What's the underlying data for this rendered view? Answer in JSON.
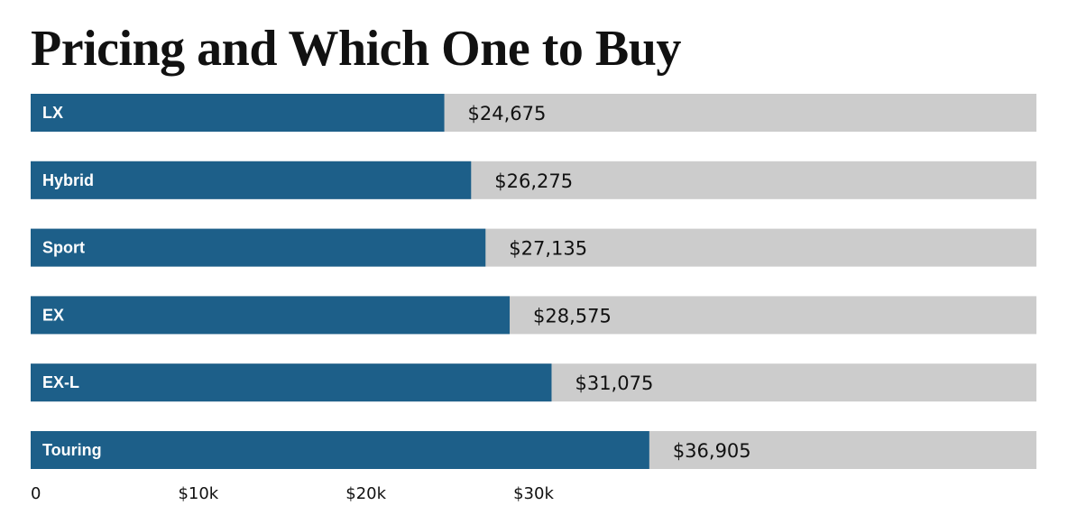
{
  "chart_data": {
    "type": "bar",
    "orientation": "horizontal",
    "title": "Pricing and Which One to Buy",
    "categories": [
      "LX",
      "Hybrid",
      "Sport",
      "EX",
      "EX-L",
      "Touring"
    ],
    "values": [
      24675,
      26275,
      27135,
      28575,
      31075,
      36905
    ],
    "value_labels": [
      "$24,675",
      "$26,275",
      "$27,135",
      "$28,575",
      "$31,075",
      "$36,905"
    ],
    "x_ticks": [
      0,
      10000,
      20000,
      30000
    ],
    "x_tick_labels": [
      "0",
      "$10k",
      "$20k",
      "$30k"
    ],
    "xlim": [
      0,
      60000
    ],
    "grid": false,
    "colors": {
      "bar": "#1d5f89",
      "track": "#cccccc",
      "bar_label": "#ffffff",
      "text": "#111111"
    }
  }
}
